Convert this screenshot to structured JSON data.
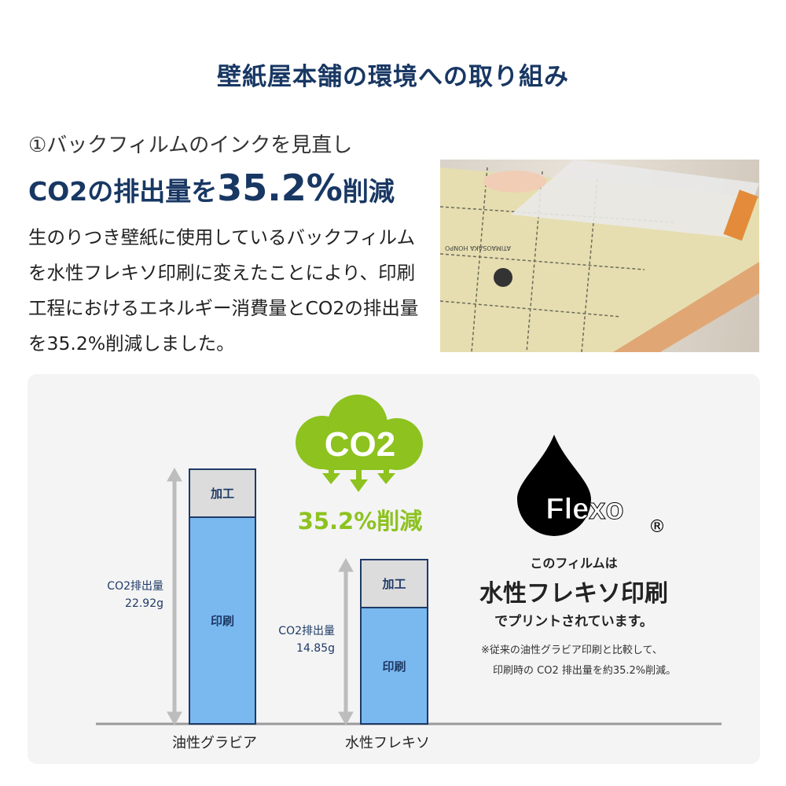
{
  "title": "壁紙屋本舗の環境への取り組み",
  "section": {
    "step": "①バックフィルムのインクを見直し",
    "headline_prefix": "CO2の排出量を",
    "headline_value": "35.2%",
    "headline_suffix": "削減",
    "body": "生のりつき壁紙に使用しているバックフィルムを水性フレキソ印刷に変えたことにより、印刷工程におけるエネルギー消費量とCO2の排出量を35.2%削減しました。"
  },
  "photo": {
    "roll_print": "ATIMAOSAKA HONPO"
  },
  "infographic": {
    "cloud_text": "CO2",
    "reduction_label": "35.2%削減",
    "bars": [
      {
        "category": "油性グラビア",
        "total_label": "CO2排出量",
        "total_value": "22.92g",
        "total": 22.92,
        "top_segment": "加工",
        "bottom_segment": "印刷"
      },
      {
        "category": "水性フレキソ",
        "total_label": "CO2排出量",
        "total_value": "14.85g",
        "total": 14.85,
        "top_segment": "加工",
        "bottom_segment": "印刷"
      }
    ],
    "colors": {
      "print": "#7ab8f0",
      "process": "#dcdcdc",
      "green": "#8dc21f",
      "navy": "#183763"
    }
  },
  "flexo": {
    "logo_text": "Flexo",
    "registered": "®",
    "line1": "このフィルムは",
    "line2": "水性フレキソ印刷",
    "line3": "でプリントされています。",
    "note1": "※従来の油性グラビア印刷と比較して、",
    "note2": "印刷時の CO2 排出量を約35.2%削減。"
  }
}
